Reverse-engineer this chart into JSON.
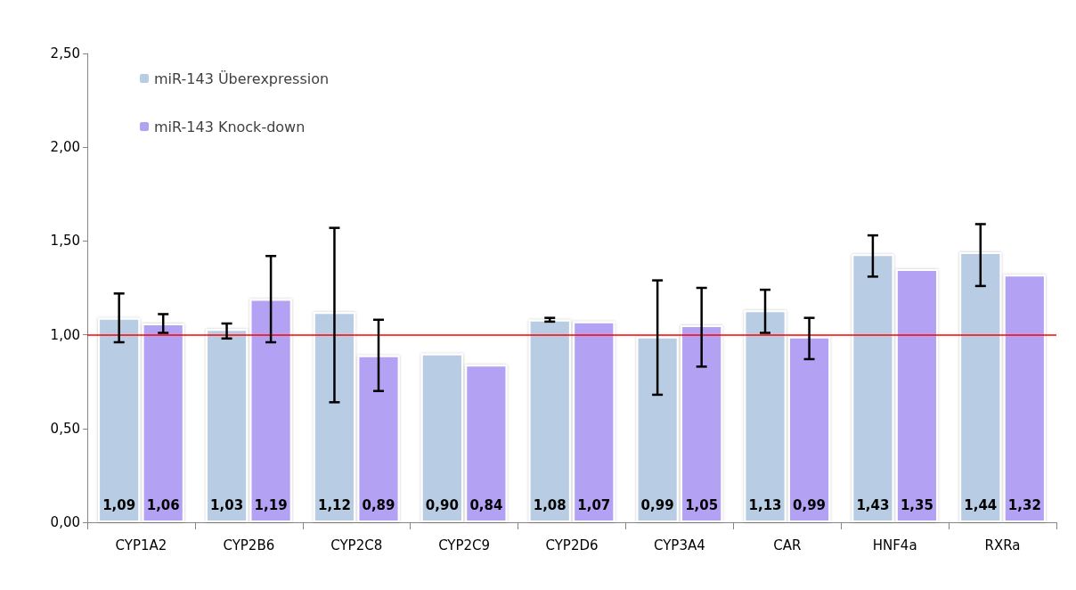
{
  "chart_data": {
    "type": "bar",
    "categories": [
      "CYP1A2",
      "CYP2B6",
      "CYP2C8",
      "CYP2C9",
      "CYP2D6",
      "CYP3A4",
      "CAR",
      "HNF4a",
      "RXRa"
    ],
    "series": [
      {
        "name": "miR-143 Überexpression",
        "color": "#b8cce4",
        "values": [
          1.09,
          1.03,
          1.12,
          0.9,
          1.08,
          0.99,
          1.13,
          1.43,
          1.44
        ],
        "value_labels": [
          "1,09",
          "1,03",
          "1,12",
          "0,90",
          "1,08",
          "0,99",
          "1,13",
          "1,43",
          "1,44"
        ],
        "errors": [
          [
            0.96,
            1.22
          ],
          [
            0.98,
            1.06
          ],
          [
            0.64,
            1.57
          ],
          null,
          [
            1.07,
            1.09
          ],
          [
            0.68,
            1.29
          ],
          [
            1.01,
            1.24
          ],
          [
            1.31,
            1.53
          ],
          [
            1.26,
            1.59
          ]
        ]
      },
      {
        "name": "miR-143 Knock-down",
        "color": "#b3a2f4",
        "values": [
          1.06,
          1.19,
          0.89,
          0.84,
          1.07,
          1.05,
          0.99,
          1.35,
          1.32
        ],
        "value_labels": [
          "1,06",
          "1,19",
          "0,89",
          "0,84",
          "1,07",
          "1,05",
          "0,99",
          "1,35",
          "1,32"
        ],
        "errors": [
          [
            1.01,
            1.11
          ],
          [
            0.96,
            1.42
          ],
          [
            0.7,
            1.08
          ],
          null,
          null,
          [
            0.83,
            1.25
          ],
          [
            0.87,
            1.09
          ],
          null,
          null
        ]
      }
    ],
    "ylim": [
      0,
      2.5
    ],
    "yticks": [
      {
        "value": 0,
        "label": "0,00"
      },
      {
        "value": 0.5,
        "label": "0,50"
      },
      {
        "value": 1,
        "label": "1,00"
      },
      {
        "value": 1.5,
        "label": "1,50"
      },
      {
        "value": 2,
        "label": "2,00"
      },
      {
        "value": 2.5,
        "label": "2,50"
      }
    ],
    "ref_lines": [
      {
        "axis": "y",
        "value": 1,
        "color": "#ff0000"
      }
    ],
    "grid": false,
    "legend": "top left"
  }
}
